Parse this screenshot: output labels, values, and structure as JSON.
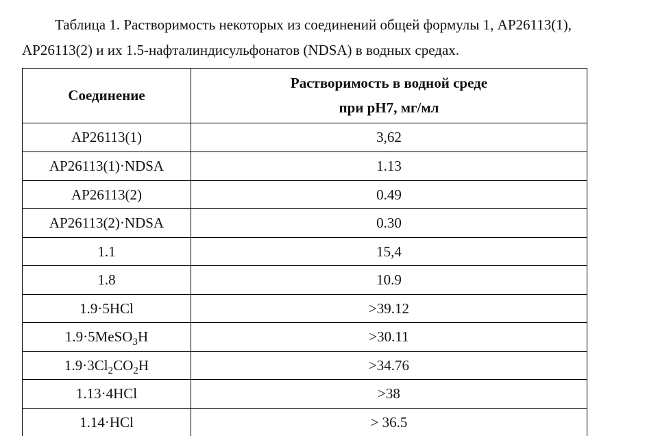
{
  "caption_line1": "Таблица 1. Растворимость некоторых из соединений общей формулы 1, AP26113(1),",
  "caption_line2": "AP26113(2) и их 1.5-нафталиндисульфонатов (NDSA) в водных средах.",
  "table": {
    "header": {
      "compound": "Соединение",
      "value_line1": "Растворимость в водной среде",
      "value_line2": "при pH7, мг/мл"
    },
    "rows": [
      {
        "compound_html": "AP26113(1)",
        "value": "3,62"
      },
      {
        "compound_html": "AP26113(1)·NDSA",
        "value": "1.13"
      },
      {
        "compound_html": "AP26113(2)",
        "value": "0.49"
      },
      {
        "compound_html": "AP26113(2)·NDSA",
        "value": "0.30"
      },
      {
        "compound_html": "1.1",
        "value": "15,4"
      },
      {
        "compound_html": "1.8",
        "value": "10.9"
      },
      {
        "compound_html": "1.9·5HCl",
        "value": ">39.12"
      },
      {
        "compound_html": "1.9·5MeSO<span class=\"sub\">3</span>H",
        "value": ">30.11"
      },
      {
        "compound_html": "1.9·3Cl<span class=\"sub\">2</span>CO<span class=\"sub\">2</span>H",
        "value": ">34.76"
      },
      {
        "compound_html": "1.13·4HCl",
        "value": ">38"
      },
      {
        "compound_html": "1.14·HCl",
        "value": "> 36.5"
      }
    ]
  }
}
